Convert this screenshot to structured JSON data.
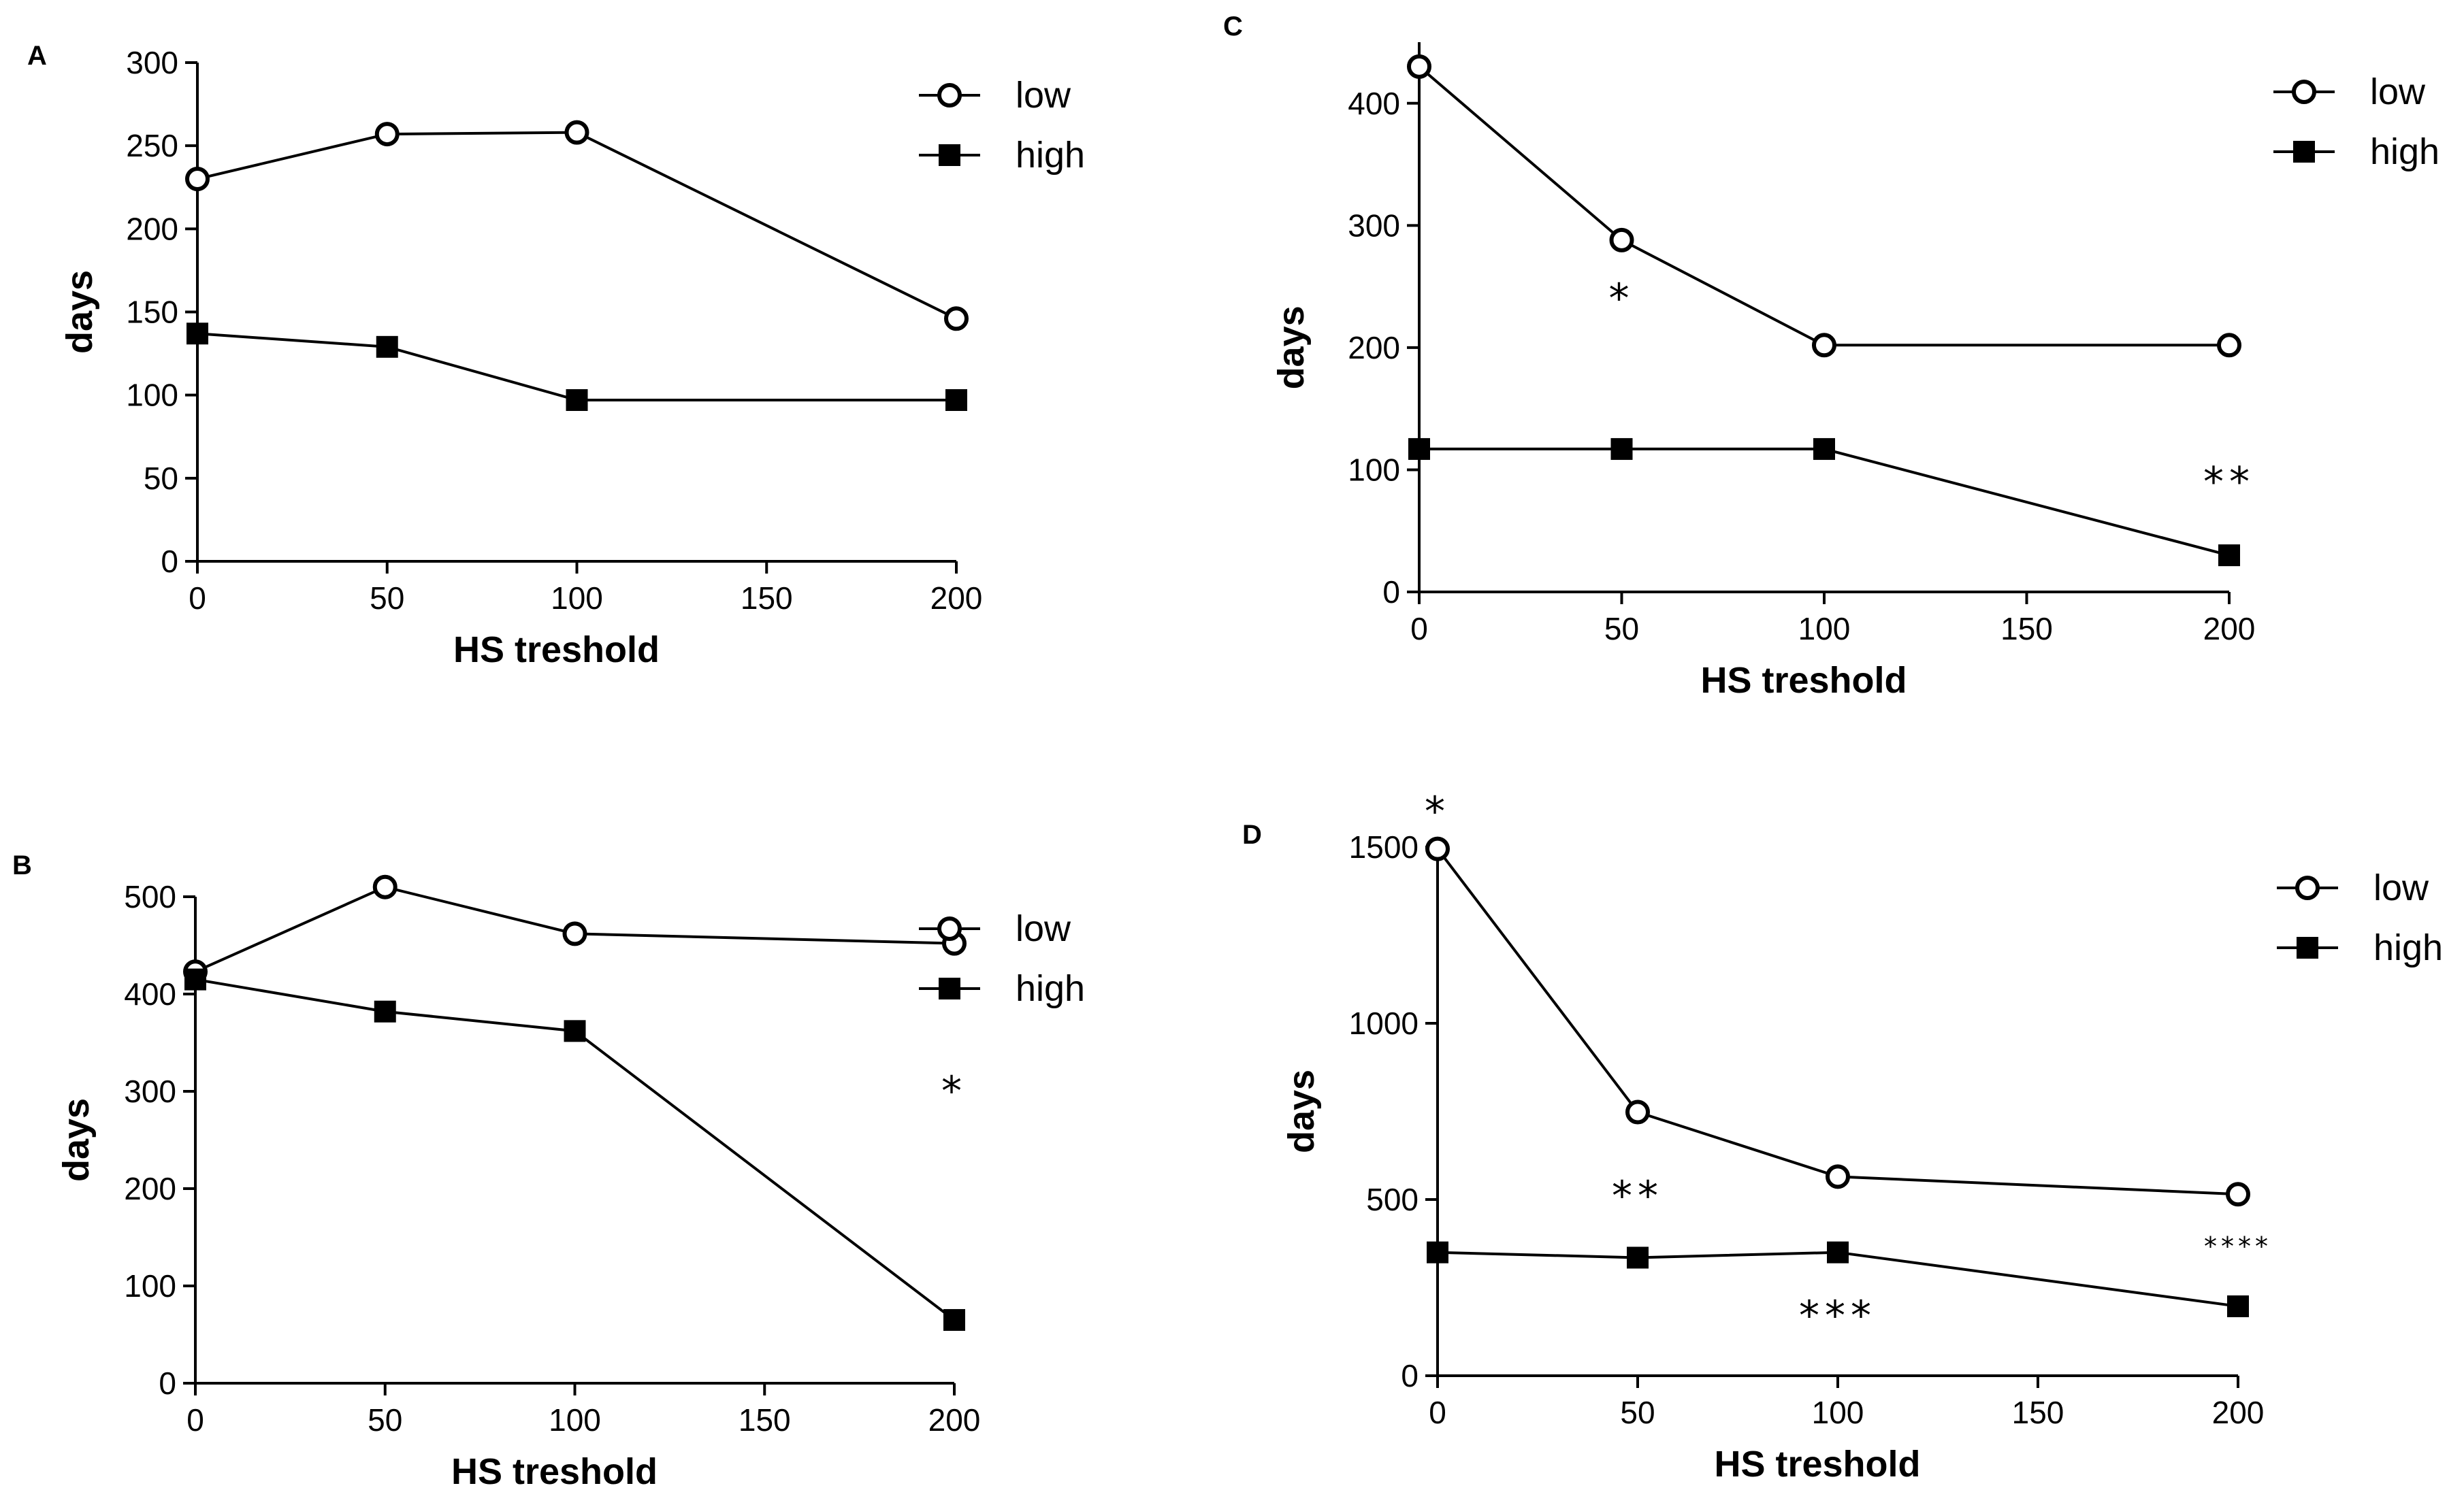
{
  "chart_data": [
    {
      "panel": "A",
      "type": "line",
      "xlabel": "HS treshold",
      "ylabel": "days",
      "x": [
        0,
        50,
        100,
        200
      ],
      "xlim": [
        0,
        200
      ],
      "xticks": [
        0,
        50,
        100,
        150,
        200
      ],
      "ylim": [
        0,
        300
      ],
      "yticks": [
        0,
        50,
        100,
        150,
        200,
        250,
        300
      ],
      "legend": "top-right",
      "series": [
        {
          "name": "low",
          "marker": "open-circle",
          "values": [
            230,
            257,
            258,
            146
          ]
        },
        {
          "name": "high",
          "marker": "filled-square",
          "values": [
            137,
            129,
            97,
            97
          ]
        }
      ],
      "annotations": []
    },
    {
      "panel": "B",
      "type": "line",
      "xlabel": "HS treshold",
      "ylabel": "days",
      "x": [
        0,
        50,
        100,
        200
      ],
      "xlim": [
        0,
        200
      ],
      "xticks": [
        0,
        50,
        100,
        150,
        200
      ],
      "ylim": [
        0,
        500
      ],
      "yticks": [
        0,
        100,
        200,
        300,
        400,
        500
      ],
      "legend": "top-right",
      "series": [
        {
          "name": "low",
          "marker": "open-circle",
          "values": [
            423,
            510,
            462,
            452
          ]
        },
        {
          "name": "high",
          "marker": "filled-square",
          "values": [
            415,
            382,
            362,
            65
          ]
        }
      ],
      "annotations": [
        {
          "text": "*",
          "x": 200,
          "y": 300
        }
      ]
    },
    {
      "panel": "C",
      "type": "line",
      "xlabel": "HS treshold",
      "ylabel": "days",
      "x": [
        0,
        50,
        100,
        200
      ],
      "xlim": [
        0,
        200
      ],
      "xticks": [
        0,
        50,
        100,
        150,
        200
      ],
      "ylim": [
        0,
        450
      ],
      "yticks": [
        0,
        100,
        200,
        300,
        400
      ],
      "legend": "top-right",
      "series": [
        {
          "name": "low",
          "marker": "open-circle",
          "values": [
            430,
            288,
            202,
            202
          ]
        },
        {
          "name": "high",
          "marker": "filled-square",
          "values": [
            117,
            117,
            117,
            30
          ]
        }
      ],
      "annotations": [
        {
          "text": "*",
          "x": 50,
          "y": 240
        },
        {
          "text": "**",
          "x": 200,
          "y": 90
        }
      ]
    },
    {
      "panel": "D",
      "type": "line",
      "xlabel": "HS treshold",
      "ylabel": "days",
      "x": [
        0,
        50,
        100,
        200
      ],
      "xlim": [
        0,
        200
      ],
      "xticks": [
        0,
        50,
        100,
        150,
        200
      ],
      "ylim": [
        0,
        1500
      ],
      "yticks": [
        0,
        500,
        1000,
        1500
      ],
      "legend": "top-right",
      "series": [
        {
          "name": "low",
          "marker": "open-circle",
          "values": [
            1495,
            748,
            565,
            515
          ]
        },
        {
          "name": "high",
          "marker": "filled-square",
          "values": [
            350,
            335,
            350,
            197
          ]
        }
      ],
      "annotations": [
        {
          "text": "*",
          "x": 0,
          "y": 1600
        },
        {
          "text": "**",
          "x": 50,
          "y": 510
        },
        {
          "text": "***",
          "x": 100,
          "y": 170
        },
        {
          "text": "****",
          "x": 200,
          "y": 380,
          "small": true
        }
      ]
    }
  ]
}
